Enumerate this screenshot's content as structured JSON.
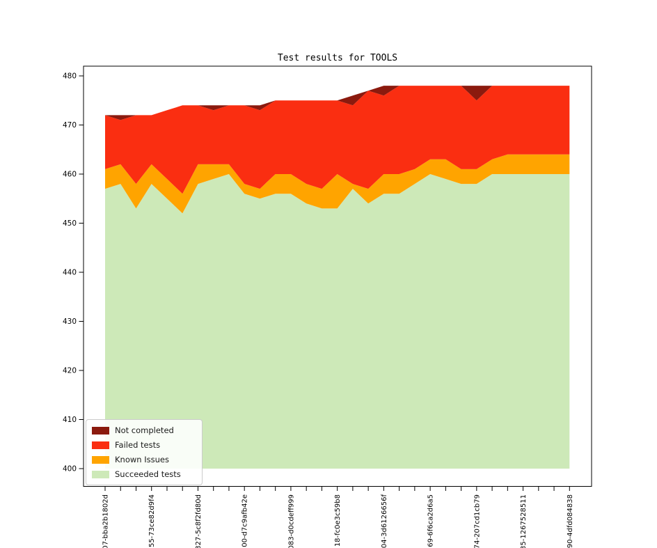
{
  "chart_data": {
    "type": "area",
    "stacked": true,
    "title": "Test results for TOOLS",
    "xlabel": "",
    "ylabel": "",
    "grid": false,
    "legend_position": "lower left",
    "n_points": 31,
    "baseline": 400,
    "ylim": [
      396.4,
      482
    ],
    "y_ticks": [
      400,
      410,
      420,
      430,
      440,
      450,
      460,
      470,
      480
    ],
    "x_tick_label_every": 3,
    "x_tick_labels": [
      {
        "i": 0,
        "text": "07-bba2b1802d"
      },
      {
        "i": 3,
        "text": "55-73ce82d9f4"
      },
      {
        "i": 6,
        "text": "327-5c8f2fd80d"
      },
      {
        "i": 9,
        "text": "00-d7c9afb42e"
      },
      {
        "i": 12,
        "text": "083-d0cdeff999"
      },
      {
        "i": 15,
        "text": "18-fc0e3c59b8"
      },
      {
        "i": 18,
        "text": "04-3d6126656f"
      },
      {
        "i": 21,
        "text": "69-6f6ca2d6a5"
      },
      {
        "i": 24,
        "text": "74-207cd1cb79"
      },
      {
        "i": 27,
        "text": "35-1267528511"
      },
      {
        "i": 30,
        "text": "90-4dfd084838"
      }
    ],
    "series": [
      {
        "name": "Succeeded tests",
        "color": "#CDE9B8",
        "values": [
          457,
          458,
          453,
          458,
          455,
          452,
          458,
          459,
          460,
          456,
          455,
          456,
          456,
          454,
          453,
          453,
          457,
          454,
          456,
          456,
          458,
          460,
          459,
          458,
          458,
          460,
          460,
          460,
          460,
          460,
          460
        ]
      },
      {
        "name": "Known Issues",
        "color": "#FFA400",
        "values": [
          4,
          4,
          5,
          4,
          4,
          4,
          4,
          3,
          2,
          2,
          2,
          4,
          4,
          4,
          4,
          7,
          1,
          3,
          4,
          4,
          3,
          3,
          4,
          3,
          3,
          3,
          4,
          4,
          4,
          4,
          4
        ]
      },
      {
        "name": "Failed tests",
        "color": "#FA2E11",
        "values": [
          11,
          9,
          14,
          10,
          14,
          18,
          12,
          11,
          12,
          16,
          16,
          15,
          15,
          17,
          18,
          15,
          16,
          20,
          16,
          18,
          17,
          15,
          15,
          17,
          14,
          15,
          14,
          14,
          14,
          14,
          14
        ]
      },
      {
        "name": "Not completed",
        "color": "#8B1A0E",
        "values": [
          0,
          1,
          0,
          0,
          0,
          0,
          0,
          1,
          0,
          0,
          1,
          0,
          0,
          0,
          0,
          0,
          2,
          0,
          2,
          0,
          0,
          0,
          0,
          0,
          3,
          0,
          0,
          0,
          0,
          0,
          0
        ]
      }
    ]
  },
  "legend": {
    "items": [
      {
        "label": "Not completed",
        "color": "#8B1A0E"
      },
      {
        "label": "Failed tests",
        "color": "#FA2E11"
      },
      {
        "label": "Known Issues",
        "color": "#FFA400"
      },
      {
        "label": "Succeeded tests",
        "color": "#CDE9B8"
      }
    ]
  },
  "axes": {
    "tick_color": "#000000",
    "spine_color": "#000000"
  }
}
